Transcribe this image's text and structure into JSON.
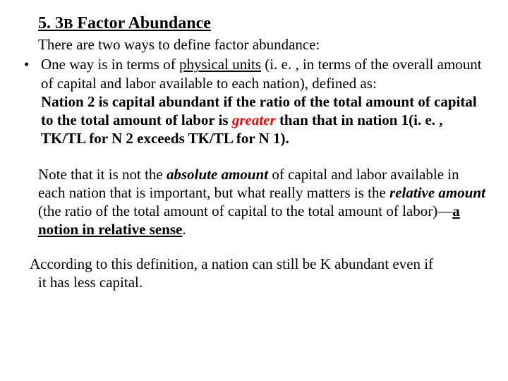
{
  "heading": {
    "num": "5. 3",
    "smallcap": "B",
    "title": " Factor Abundance"
  },
  "intro": "There are two ways to define factor abundance:",
  "bullet": {
    "marker": "•",
    "t1": "One way is in terms of ",
    "physical_units": "physical units",
    "t2": " (i. e. , in terms of the overall amount of capital and labor available to each nation), defined as:",
    "def1": "Nation 2 is capital abundant if the ratio of the total amount of capital to the total amount of labor is ",
    "greater": "greater",
    "def2": " than that in nation 1(i. e. , TK/TL for N 2 exceeds TK/TL for N 1)."
  },
  "note": {
    "t1": "Note that it is not the ",
    "abs": "absolute amount",
    "t2": " of capital and labor available in each nation that is important, but what really matters is the ",
    "rel": "relative amount",
    "t3": " (the ratio of the total amount of capital to the total amount of labor)—",
    "relsense": "a notion in relative sense",
    "t4": "."
  },
  "closing": {
    "l1": "According to this definition, a nation can still be K abundant even if",
    "l2": "it has less capital."
  },
  "colors": {
    "text": "#000000",
    "emphasis": "#ff0000",
    "background": "#ffffff"
  }
}
